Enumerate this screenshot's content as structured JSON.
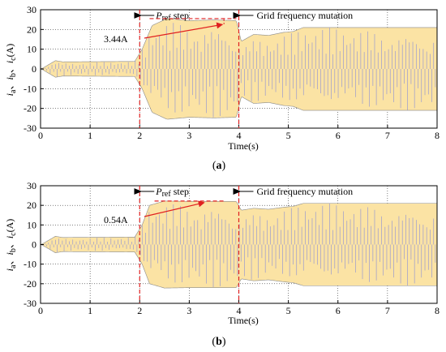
{
  "chart_data": [
    {
      "type": "line",
      "panel_label": "a",
      "xlabel": "Time(s)",
      "ylabel": "ia、ib、ic(A)",
      "ylabel_parts": {
        "i1": "i",
        "s1": "a",
        "sep1": "、",
        "i2": "i",
        "s2": "b",
        "sep2": "、",
        "i3": "i",
        "s3": "c",
        "unit": "(A)"
      },
      "xlim": [
        0,
        8
      ],
      "ylim": [
        -30,
        30
      ],
      "x_ticks": [
        "0",
        "1",
        "2",
        "3",
        "4",
        "5",
        "6",
        "7",
        "8"
      ],
      "y_ticks": [
        "30",
        "20",
        "10",
        "0",
        "-10",
        "-20",
        "-30"
      ],
      "grid": true,
      "envelope": {
        "time": [
          0,
          0.05,
          0.3,
          0.45,
          1.9,
          2.05,
          2.25,
          2.55,
          3.0,
          3.5,
          3.95,
          4.05,
          4.3,
          4.6,
          4.9,
          5.1,
          5.3,
          8.0
        ],
        "amplitude": [
          0,
          0.5,
          4.2,
          3.6,
          3.8,
          10,
          22,
          25.5,
          24.5,
          24.8,
          24.5,
          14,
          17.5,
          17,
          18.5,
          19,
          21,
          21
        ]
      },
      "annotations": {
        "pref_step_P": "P",
        "pref_step_rest": "ref step",
        "grid_mutation": "Grid frequency mutation",
        "overshoot": "3.44A"
      }
    },
    {
      "type": "line",
      "panel_label": "b",
      "xlabel": "Time(s)",
      "ylabel": "ia、ib、ic(A)",
      "ylabel_parts": {
        "i1": "i",
        "s1": "a",
        "sep1": "、",
        "i2": "i",
        "s2": "b",
        "sep2": "、",
        "i3": "i",
        "s3": "c",
        "unit": "(A)"
      },
      "xlim": [
        0,
        8
      ],
      "ylim": [
        -30,
        30
      ],
      "x_ticks": [
        "0",
        "1",
        "2",
        "3",
        "4",
        "5",
        "6",
        "7",
        "8"
      ],
      "y_ticks": [
        "30",
        "20",
        "10",
        "0",
        "-10",
        "-20",
        "-30"
      ],
      "grid": true,
      "envelope": {
        "time": [
          0,
          0.05,
          0.3,
          0.45,
          1.9,
          2.05,
          2.2,
          2.5,
          3.0,
          3.5,
          3.95,
          4.05,
          4.3,
          4.6,
          4.9,
          5.1,
          5.3,
          8.0
        ],
        "amplitude": [
          0,
          0.5,
          4.2,
          3.6,
          3.8,
          10,
          20,
          22.2,
          22,
          22,
          22,
          17.5,
          18.5,
          18,
          19,
          19.5,
          21,
          21
        ]
      },
      "annotations": {
        "pref_step_P": "P",
        "pref_step_rest": "ref step",
        "grid_mutation": "Grid frequency mutation",
        "overshoot": "0.54A"
      }
    }
  ],
  "colors": {
    "fill": "#fbe3a4",
    "phase_lines": "#9a9ad0",
    "annotation_red": "#e02020",
    "grid": "#000000"
  }
}
